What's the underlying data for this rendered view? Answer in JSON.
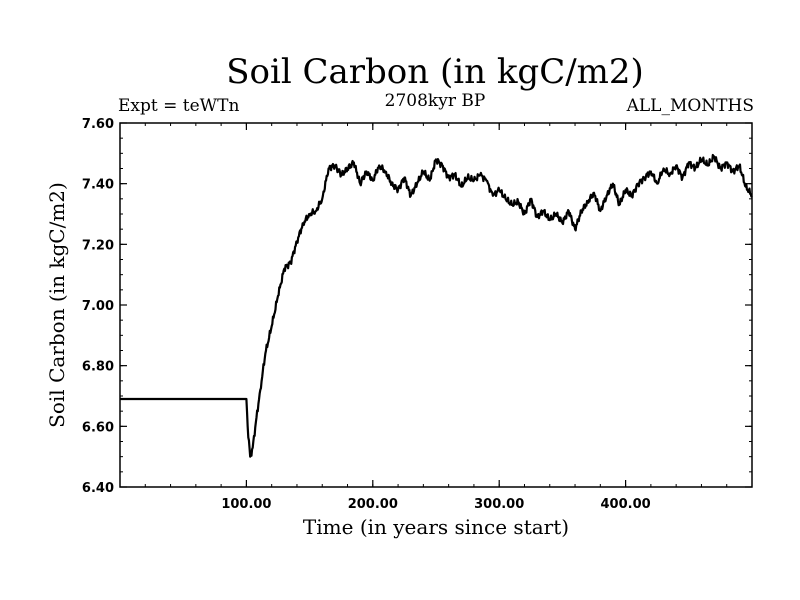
{
  "chart_data": {
    "type": "line",
    "title": "Soil Carbon (in kgC/m2)",
    "subtitle": "2708kyr BP",
    "left_label": "Expt = teWTn",
    "right_label": "ALL_MONTHS",
    "xlabel": "Time (in years since start)",
    "ylabel": "Soil Carbon (in kgC/m2)",
    "xlim": [
      0,
      500
    ],
    "ylim": [
      6.4,
      7.6
    ],
    "xticks": [
      100,
      200,
      300,
      400
    ],
    "xtick_labels": [
      "100.00",
      "200.00",
      "300.00",
      "400.00"
    ],
    "yticks": [
      6.4,
      6.6,
      6.8,
      7.0,
      7.2,
      7.4,
      7.6
    ],
    "ytick_labels": [
      "6.40",
      "6.60",
      "6.80",
      "7.00",
      "7.20",
      "7.40",
      "7.60"
    ],
    "series": [
      {
        "name": "Soil Carbon",
        "color": "#000000",
        "x": [
          0,
          100,
          101,
          103,
          105,
          108,
          111,
          115,
          120,
          125,
          130,
          135,
          140,
          145,
          150,
          155,
          160,
          165,
          170,
          175,
          180,
          185,
          190,
          195,
          200,
          205,
          210,
          215,
          220,
          225,
          230,
          235,
          240,
          245,
          250,
          255,
          260,
          265,
          270,
          275,
          280,
          285,
          290,
          295,
          300,
          305,
          310,
          315,
          320,
          325,
          330,
          335,
          340,
          345,
          350,
          355,
          360,
          365,
          370,
          375,
          380,
          385,
          390,
          395,
          400,
          405,
          410,
          415,
          420,
          425,
          430,
          435,
          440,
          445,
          450,
          455,
          460,
          465,
          470,
          475,
          480,
          485,
          490,
          495,
          500
        ],
        "y": [
          6.69,
          6.69,
          6.6,
          6.5,
          6.53,
          6.63,
          6.72,
          6.84,
          6.93,
          7.03,
          7.12,
          7.14,
          7.21,
          7.27,
          7.3,
          7.31,
          7.35,
          7.45,
          7.46,
          7.43,
          7.45,
          7.47,
          7.4,
          7.44,
          7.41,
          7.46,
          7.44,
          7.4,
          7.38,
          7.42,
          7.36,
          7.4,
          7.44,
          7.41,
          7.48,
          7.46,
          7.42,
          7.43,
          7.39,
          7.42,
          7.41,
          7.43,
          7.41,
          7.36,
          7.38,
          7.35,
          7.33,
          7.34,
          7.3,
          7.35,
          7.29,
          7.31,
          7.28,
          7.3,
          7.27,
          7.31,
          7.25,
          7.31,
          7.34,
          7.37,
          7.31,
          7.36,
          7.4,
          7.33,
          7.38,
          7.36,
          7.4,
          7.42,
          7.44,
          7.4,
          7.45,
          7.43,
          7.46,
          7.42,
          7.47,
          7.45,
          7.48,
          7.46,
          7.49,
          7.45,
          7.47,
          7.44,
          7.46,
          7.39,
          7.36
        ]
      }
    ]
  }
}
